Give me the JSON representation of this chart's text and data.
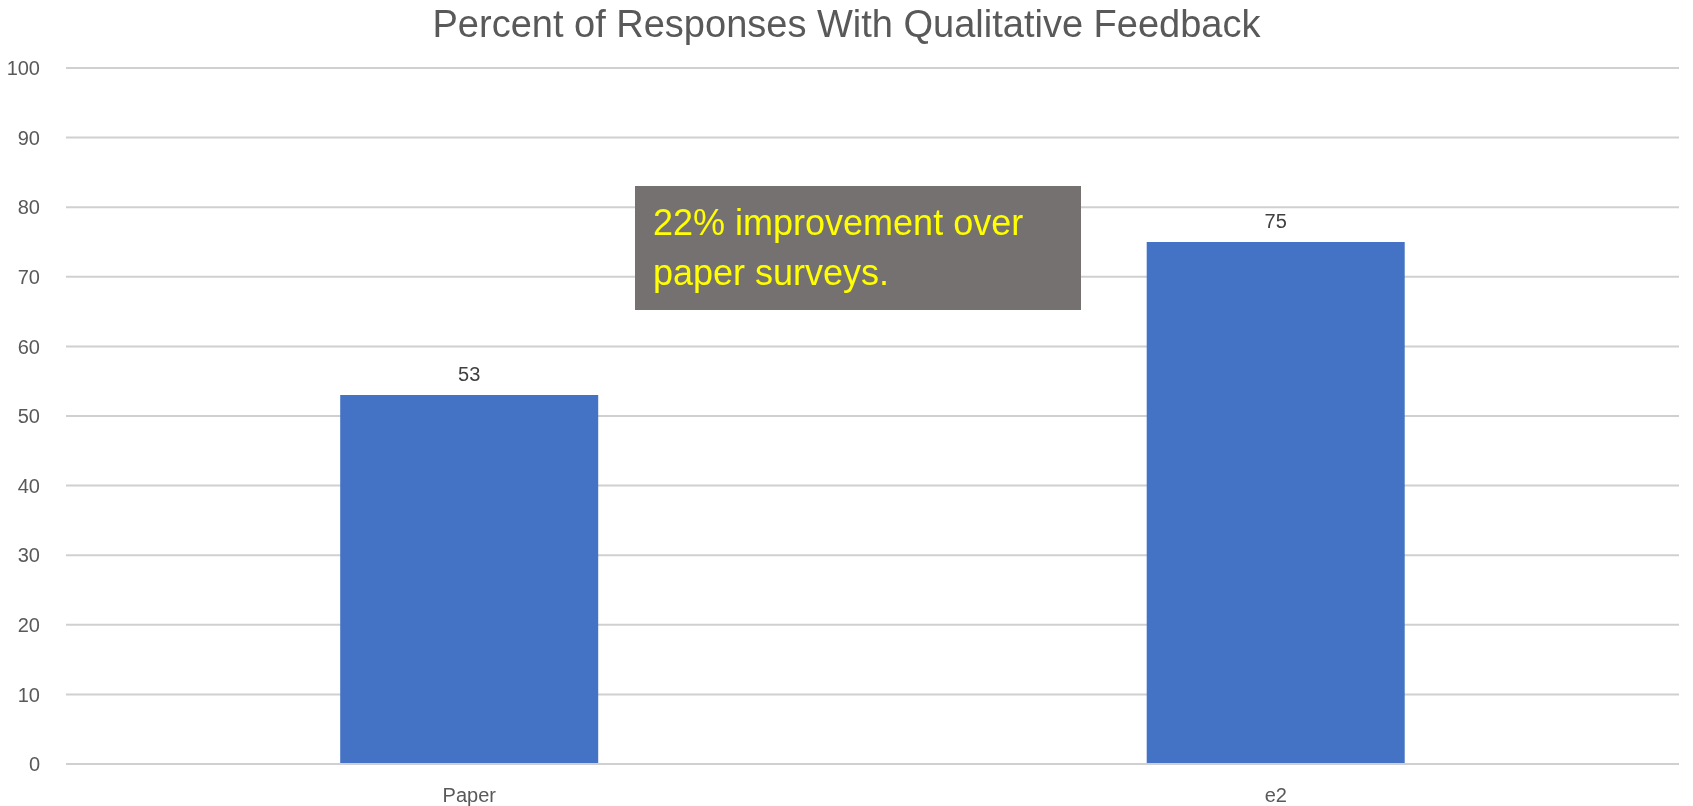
{
  "chart_data": {
    "type": "bar",
    "title": "Percent of Responses With Qualitative Feedback",
    "categories": [
      "Paper",
      "e2"
    ],
    "values": [
      53,
      75
    ],
    "color": "#4472c4",
    "ylim": [
      0,
      100
    ],
    "yticks": [
      0,
      10,
      20,
      30,
      40,
      50,
      60,
      70,
      80,
      90,
      100
    ],
    "grid": "y",
    "data_labels": true,
    "annotations": [
      "22% improvement over paper surveys."
    ]
  }
}
